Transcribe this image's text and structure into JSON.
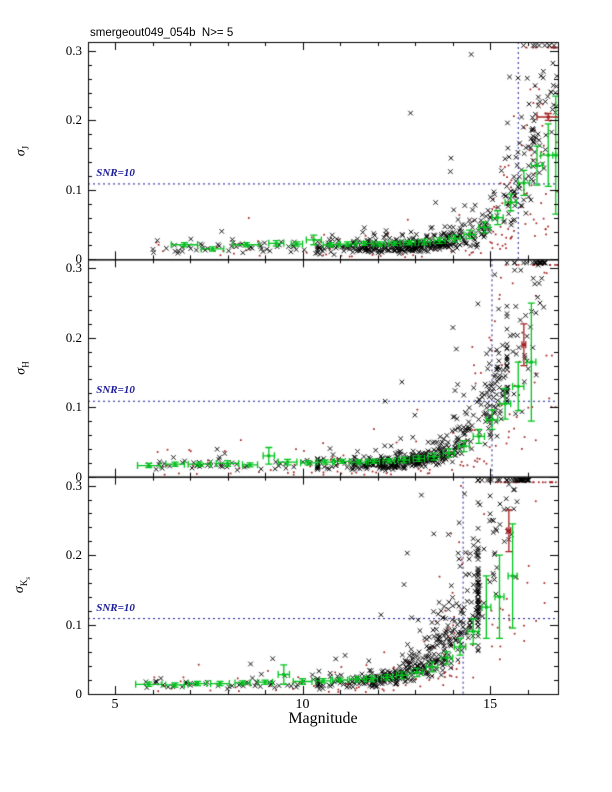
{
  "header": {
    "title": "smergeout049_054b  N>= 5"
  },
  "chart_data": {
    "type": "scatter",
    "title": "smergeout049_054b  N>= 5",
    "xlabel": "Magnitude",
    "x_range": [
      4.28,
      16.81
    ],
    "y_range": [
      0,
      0.313
    ],
    "x_ticks_labeled": [
      5,
      10,
      15
    ],
    "x_minor_step": 1,
    "y_ticks_labeled": [
      0,
      0.1,
      0.2,
      0.3
    ],
    "y_tick_labels": [
      "0",
      "0.1",
      "0.2",
      "0.3"
    ],
    "y_minor_step": 0.02,
    "grid": false,
    "snr_label": "SNR=10",
    "snr_sigma": 0.1086,
    "snr_label_mag": 4.5,
    "colors": {
      "frame": "#000000",
      "black_points": "#000000",
      "red_points": "#a32020",
      "green_bins": "#00c41c",
      "dashed_lines": "#1c1c99",
      "background": "#ffffff"
    },
    "panels": [
      {
        "id": "J",
        "ylabel_base": "σ",
        "ylabel_sub": "J",
        "ylabel_subsub": "",
        "vline_mag": 15.75,
        "snr10_mag": 15.75,
        "scatter_gen": {
          "seed": 7,
          "n_black": 560,
          "n_red": 150,
          "m_bright_min": 5.9,
          "m_black_max": 16.8,
          "m_red_max": 16.8,
          "sigma_floor": 0.017,
          "sigma_max": 0.308
        },
        "green_bins": [
          [
            6.85,
            0.021,
            0.35,
            0.003
          ],
          [
            7.6,
            0.015,
            0.3,
            0.003
          ],
          [
            8.5,
            0.021,
            0.35,
            0.003
          ],
          [
            9.3,
            0.023,
            0.2,
            0.004
          ],
          [
            9.85,
            0.022,
            0.15,
            0.003
          ],
          [
            10.3,
            0.028,
            0.2,
            0.007
          ],
          [
            10.75,
            0.021,
            0.2,
            0.003
          ],
          [
            11.2,
            0.022,
            0.2,
            0.003
          ],
          [
            11.65,
            0.023,
            0.2,
            0.003
          ],
          [
            12.05,
            0.022,
            0.15,
            0.003
          ],
          [
            12.45,
            0.023,
            0.15,
            0.003
          ],
          [
            12.85,
            0.024,
            0.15,
            0.003
          ],
          [
            13.25,
            0.025,
            0.15,
            0.004
          ],
          [
            13.65,
            0.027,
            0.15,
            0.004
          ],
          [
            14.05,
            0.03,
            0.15,
            0.005
          ],
          [
            14.45,
            0.036,
            0.15,
            0.006
          ],
          [
            14.85,
            0.046,
            0.15,
            0.008
          ],
          [
            15.2,
            0.06,
            0.15,
            0.01
          ],
          [
            15.55,
            0.082,
            0.15,
            0.012
          ],
          [
            15.9,
            0.11,
            0.15,
            0.018
          ],
          [
            16.25,
            0.135,
            0.15,
            0.028
          ],
          [
            16.55,
            0.15,
            0.2,
            0.045
          ],
          [
            16.75,
            0.15,
            0.08,
            0.085
          ]
        ],
        "red_bins": [
          [
            16.55,
            0.205,
            0.3,
            0.005
          ]
        ]
      },
      {
        "id": "H",
        "ylabel_base": "σ",
        "ylabel_sub": "H",
        "ylabel_subsub": "",
        "vline_mag": 15.05,
        "snr10_mag": 15.05,
        "scatter_gen": {
          "seed": 11,
          "n_black": 560,
          "n_red": 150,
          "m_bright_min": 5.8,
          "m_black_max": 16.5,
          "m_red_max": 16.8,
          "sigma_floor": 0.017,
          "sigma_max": 0.308
        },
        "green_bins": [
          [
            5.9,
            0.016,
            0.3,
            0.003
          ],
          [
            6.6,
            0.018,
            0.25,
            0.003
          ],
          [
            7.25,
            0.018,
            0.3,
            0.003
          ],
          [
            8.0,
            0.019,
            0.3,
            0.004
          ],
          [
            8.6,
            0.017,
            0.2,
            0.003
          ],
          [
            9.1,
            0.03,
            0.15,
            0.012
          ],
          [
            9.6,
            0.021,
            0.25,
            0.004
          ],
          [
            10.15,
            0.02,
            0.2,
            0.003
          ],
          [
            10.6,
            0.021,
            0.2,
            0.003
          ],
          [
            11.05,
            0.022,
            0.2,
            0.003
          ],
          [
            11.5,
            0.021,
            0.2,
            0.003
          ],
          [
            11.9,
            0.022,
            0.15,
            0.003
          ],
          [
            12.3,
            0.023,
            0.15,
            0.003
          ],
          [
            12.7,
            0.024,
            0.15,
            0.004
          ],
          [
            13.1,
            0.026,
            0.15,
            0.004
          ],
          [
            13.5,
            0.029,
            0.15,
            0.005
          ],
          [
            13.9,
            0.034,
            0.15,
            0.006
          ],
          [
            14.3,
            0.044,
            0.15,
            0.008
          ],
          [
            14.7,
            0.058,
            0.15,
            0.01
          ],
          [
            15.05,
            0.082,
            0.15,
            0.014
          ],
          [
            15.4,
            0.105,
            0.15,
            0.022
          ],
          [
            15.75,
            0.13,
            0.15,
            0.035
          ],
          [
            16.1,
            0.165,
            0.12,
            0.085
          ]
        ],
        "red_bins": [
          [
            15.9,
            0.19,
            0.05,
            0.03
          ]
        ]
      },
      {
        "id": "Ks",
        "ylabel_base": "σ",
        "ylabel_sub": "K",
        "ylabel_subsub": "s",
        "vline_mag": 14.28,
        "snr10_mag": 14.28,
        "scatter_gen": {
          "seed": 23,
          "n_black": 560,
          "n_red": 150,
          "m_bright_min": 5.8,
          "m_black_max": 16.1,
          "m_red_max": 16.8,
          "sigma_floor": 0.015,
          "sigma_max": 0.308
        },
        "green_bins": [
          [
            5.9,
            0.014,
            0.35,
            0.003
          ],
          [
            6.6,
            0.013,
            0.25,
            0.003
          ],
          [
            7.2,
            0.015,
            0.25,
            0.003
          ],
          [
            7.8,
            0.015,
            0.25,
            0.003
          ],
          [
            8.4,
            0.016,
            0.2,
            0.003
          ],
          [
            9.0,
            0.017,
            0.2,
            0.003
          ],
          [
            9.5,
            0.028,
            0.15,
            0.014
          ],
          [
            10.0,
            0.018,
            0.25,
            0.004
          ],
          [
            10.55,
            0.019,
            0.2,
            0.003
          ],
          [
            11.0,
            0.02,
            0.2,
            0.003
          ],
          [
            11.45,
            0.021,
            0.2,
            0.004
          ],
          [
            11.85,
            0.022,
            0.15,
            0.004
          ],
          [
            12.25,
            0.024,
            0.15,
            0.004
          ],
          [
            12.65,
            0.027,
            0.15,
            0.005
          ],
          [
            13.05,
            0.031,
            0.15,
            0.006
          ],
          [
            13.45,
            0.039,
            0.15,
            0.007
          ],
          [
            13.85,
            0.052,
            0.15,
            0.009
          ],
          [
            14.2,
            0.068,
            0.15,
            0.012
          ],
          [
            14.55,
            0.09,
            0.15,
            0.018
          ],
          [
            14.9,
            0.125,
            0.12,
            0.045
          ],
          [
            15.25,
            0.14,
            0.12,
            0.06
          ],
          [
            15.6,
            0.17,
            0.12,
            0.075
          ]
        ],
        "red_bins": [
          [
            15.5,
            0.235,
            0.05,
            0.03
          ]
        ]
      }
    ]
  }
}
